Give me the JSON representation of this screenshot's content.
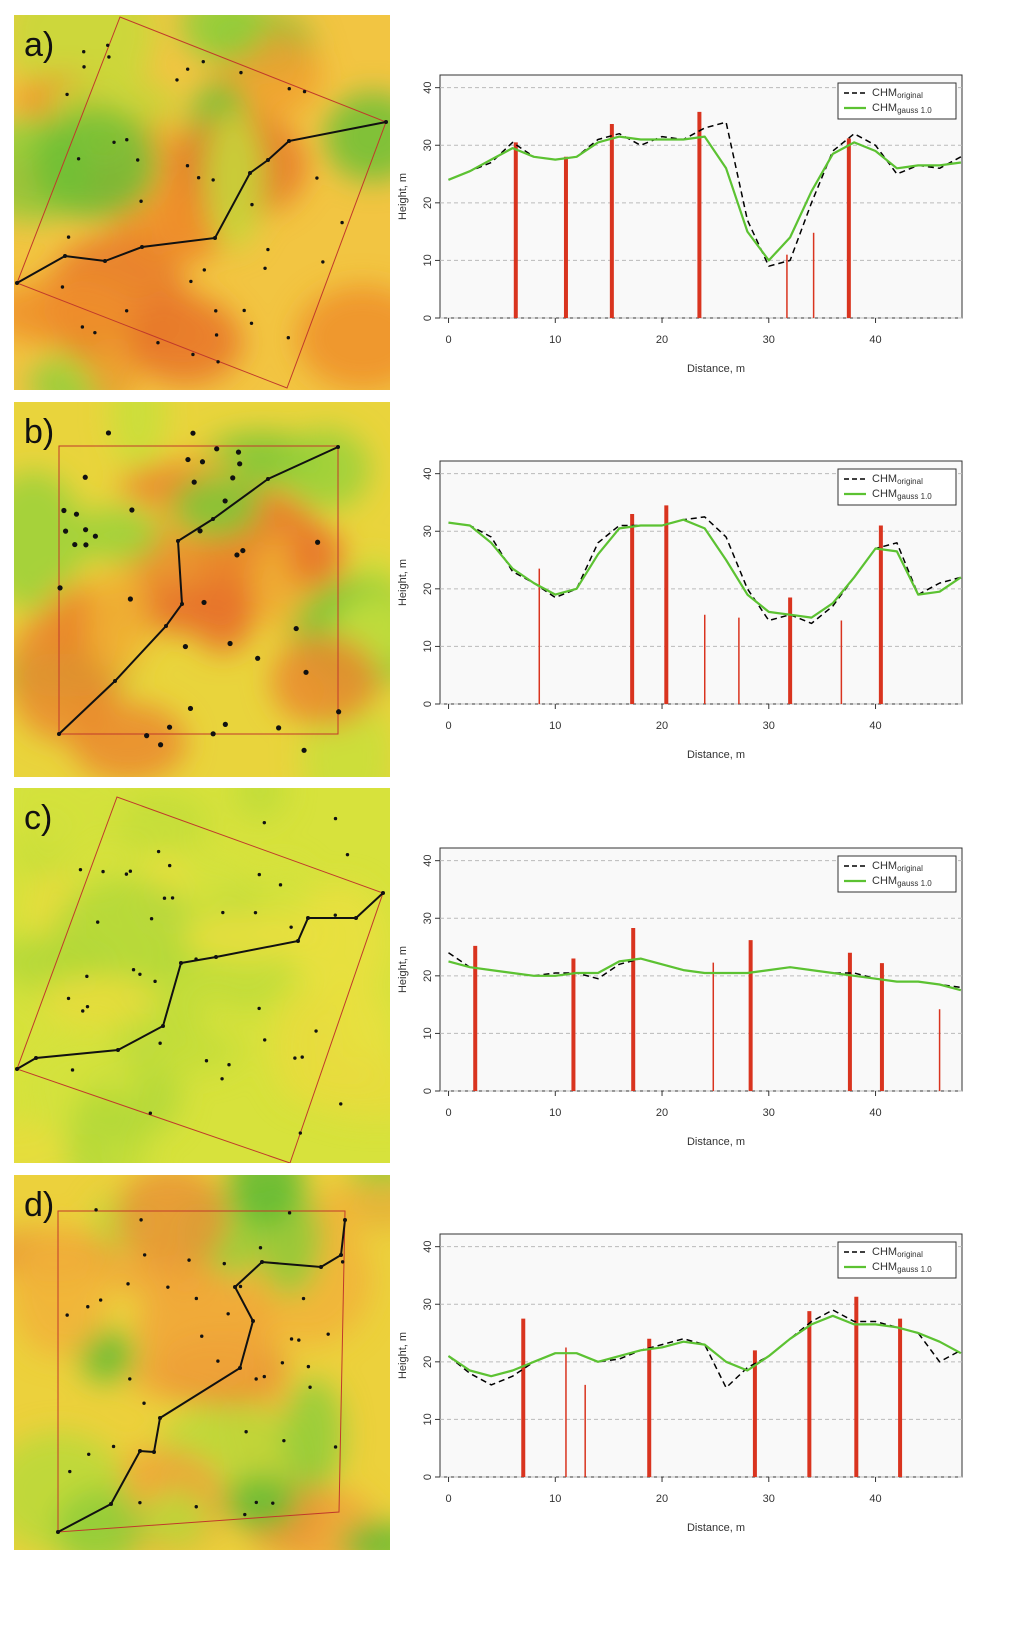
{
  "chart_data": [
    {
      "type": "line",
      "panel_label": "a)",
      "xlabel": "Distance, m",
      "ylabel": "Height, m",
      "xlim": [
        -0.8,
        48.1
      ],
      "ylim": [
        0,
        42.2
      ],
      "xticks": [
        0,
        10,
        20,
        30,
        40
      ],
      "yticks": [
        0,
        10,
        20,
        30,
        40
      ],
      "grid": true,
      "legend": "top-right",
      "x": [
        0,
        2,
        4,
        6,
        8,
        10,
        12,
        14,
        16,
        18,
        20,
        22,
        24,
        26,
        28,
        30,
        32,
        34,
        36,
        38,
        40,
        42,
        44,
        46,
        48
      ],
      "series": [
        {
          "name": "CHM",
          "subscript": "original",
          "color": "#000000",
          "dash": true,
          "values": [
            24,
            25.5,
            27,
            30.5,
            28,
            27.5,
            28,
            31,
            32,
            30,
            31.5,
            31,
            33,
            34,
            17,
            9,
            10,
            20,
            29,
            32,
            30,
            25,
            26.5,
            26,
            28
          ]
        },
        {
          "name": "CHM",
          "subscript": "gauss 1.0",
          "color": "#5cc232",
          "dash": false,
          "values": [
            24,
            25.5,
            27.5,
            29.5,
            28,
            27.5,
            28,
            30.5,
            31.5,
            31,
            31,
            31,
            31.5,
            26,
            15,
            10,
            14,
            22,
            28.5,
            30.5,
            29,
            26,
            26.5,
            26.5,
            27
          ]
        }
      ],
      "trees": {
        "color": "#d9341f",
        "x": [
          6.3,
          11,
          15.3,
          23.5,
          31.7,
          34.2,
          37.5
        ],
        "values": [
          30.5,
          28,
          33.7,
          35.8,
          11,
          14.8,
          31.2
        ],
        "thick": [
          true,
          true,
          true,
          true,
          false,
          false,
          true
        ]
      }
    },
    {
      "type": "line",
      "panel_label": "b)",
      "xlabel": "Distance, m",
      "ylabel": "Height, m",
      "xlim": [
        -0.8,
        48.1
      ],
      "ylim": [
        0,
        42.2
      ],
      "xticks": [
        0,
        10,
        20,
        30,
        40
      ],
      "yticks": [
        0,
        10,
        20,
        30,
        40
      ],
      "grid": true,
      "legend": "top-right",
      "x": [
        0,
        2,
        4,
        6,
        8,
        10,
        12,
        14,
        16,
        18,
        20,
        22,
        24,
        26,
        28,
        30,
        32,
        34,
        36,
        38,
        40,
        42,
        44,
        46,
        48
      ],
      "series": [
        {
          "name": "CHM",
          "subscript": "original",
          "color": "#000000",
          "dash": true,
          "values": [
            31.5,
            31,
            29,
            23,
            21,
            18.5,
            20,
            28,
            31,
            31,
            31,
            32,
            32.5,
            29,
            20,
            14.5,
            15.5,
            14,
            17,
            22,
            27,
            28,
            19,
            21,
            22
          ]
        },
        {
          "name": "CHM",
          "subscript": "gauss 1.0",
          "color": "#5cc232",
          "dash": false,
          "values": [
            31.5,
            31,
            28,
            23.5,
            21,
            19,
            20,
            26,
            30.5,
            31,
            31,
            32,
            30.5,
            25,
            19,
            16,
            15.5,
            15,
            17.5,
            22,
            27,
            26.5,
            19,
            19.5,
            22
          ]
        }
      ],
      "trees": {
        "color": "#d9341f",
        "x": [
          8.5,
          17.2,
          20.4,
          24,
          27.2,
          32,
          36.8,
          40.5
        ],
        "values": [
          23.5,
          33,
          34.5,
          15.5,
          15,
          18.5,
          14.5,
          31
        ],
        "thick": [
          false,
          true,
          true,
          false,
          false,
          true,
          false,
          true
        ]
      }
    },
    {
      "type": "line",
      "panel_label": "c)",
      "xlabel": "Distance, m",
      "ylabel": "Height, m",
      "xlim": [
        -0.8,
        48.1
      ],
      "ylim": [
        0,
        42.2
      ],
      "xticks": [
        0,
        10,
        20,
        30,
        40
      ],
      "yticks": [
        0,
        10,
        20,
        30,
        40
      ],
      "grid": true,
      "legend": "top-right",
      "x": [
        0,
        2,
        4,
        6,
        8,
        10,
        12,
        14,
        16,
        18,
        20,
        22,
        24,
        26,
        28,
        30,
        32,
        34,
        36,
        38,
        40,
        42,
        44,
        46,
        48
      ],
      "series": [
        {
          "name": "CHM",
          "subscript": "original",
          "color": "#000000",
          "dash": true,
          "values": [
            24,
            21.5,
            21,
            20.5,
            20,
            20.5,
            20.5,
            19.5,
            22,
            23,
            22,
            21,
            20.5,
            20.5,
            20.5,
            21,
            21.5,
            21,
            20.5,
            20.5,
            19.5,
            19,
            19,
            18.5,
            18
          ]
        },
        {
          "name": "CHM",
          "subscript": "gauss 1.0",
          "color": "#5cc232",
          "dash": false,
          "values": [
            22.5,
            21.5,
            21,
            20.5,
            20,
            20,
            20.5,
            20.5,
            22.5,
            23,
            22,
            21,
            20.5,
            20.5,
            20.5,
            21,
            21.5,
            21,
            20.5,
            20,
            19.5,
            19,
            19,
            18.5,
            17.5
          ]
        }
      ],
      "trees": {
        "color": "#d9341f",
        "x": [
          2.5,
          11.7,
          17.3,
          24.8,
          28.3,
          37.6,
          40.6,
          46
        ],
        "values": [
          25.2,
          23,
          28.3,
          22.3,
          26.2,
          24,
          22.2,
          14.2
        ],
        "thick": [
          true,
          true,
          true,
          false,
          true,
          true,
          true,
          false
        ]
      }
    },
    {
      "type": "line",
      "panel_label": "d)",
      "xlabel": "Distance, m",
      "ylabel": "Height, m",
      "xlim": [
        -0.8,
        48.1
      ],
      "ylim": [
        0,
        42.2
      ],
      "xticks": [
        0,
        10,
        20,
        30,
        40
      ],
      "yticks": [
        0,
        10,
        20,
        30,
        40
      ],
      "grid": true,
      "legend": "top-right",
      "x": [
        0,
        2,
        4,
        6,
        8,
        10,
        12,
        14,
        16,
        18,
        20,
        22,
        24,
        26,
        28,
        30,
        32,
        34,
        36,
        38,
        40,
        42,
        44,
        46,
        48
      ],
      "series": [
        {
          "name": "CHM",
          "subscript": "original",
          "color": "#000000",
          "dash": true,
          "values": [
            21,
            18,
            16,
            17.5,
            20,
            21.5,
            21.5,
            20,
            20.5,
            22,
            23,
            24,
            23,
            15.5,
            19,
            21,
            24,
            27,
            29,
            27,
            27,
            26,
            25,
            20,
            22
          ]
        },
        {
          "name": "CHM",
          "subscript": "gauss 1.0",
          "color": "#5cc232",
          "dash": false,
          "values": [
            21,
            18.5,
            17.5,
            18.5,
            20,
            21.5,
            21.5,
            20,
            21,
            22,
            22.5,
            23.5,
            23,
            20,
            18.5,
            21,
            24,
            26.5,
            28,
            26.5,
            26.5,
            26,
            25,
            23.5,
            21.5
          ]
        }
      ],
      "trees": {
        "color": "#d9341f",
        "x": [
          7,
          11,
          12.8,
          18.8,
          28.7,
          33.8,
          38.2,
          42.3
        ],
        "values": [
          27.5,
          22.5,
          16,
          24,
          22,
          28.8,
          31.3,
          27.5
        ],
        "thick": [
          true,
          false,
          false,
          true,
          true,
          true,
          true,
          true
        ]
      }
    }
  ]
}
